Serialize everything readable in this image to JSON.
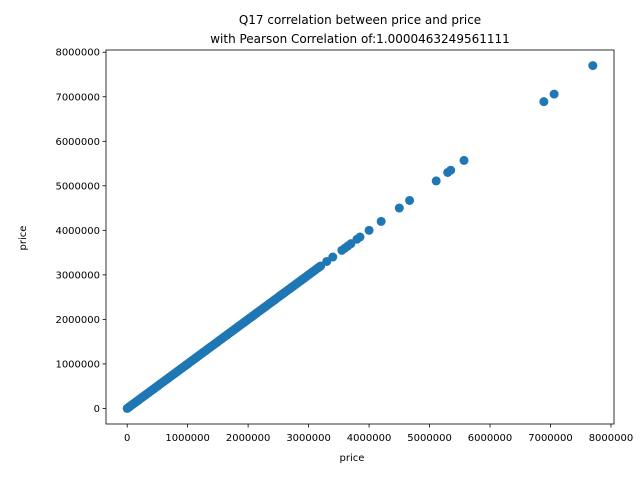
{
  "chart_data": {
    "type": "scatter",
    "title_line1": "Q17 correlation between price and price",
    "title_line2": "with Pearson Correlation of:1.0000463249561111",
    "xlabel": "price",
    "ylabel": "price",
    "xlim": [
      -350000,
      8050000
    ],
    "ylim": [
      -350000,
      8050000
    ],
    "xticks": [
      0,
      1000000,
      2000000,
      3000000,
      4000000,
      5000000,
      6000000,
      7000000,
      8000000
    ],
    "yticks": [
      0,
      1000000,
      2000000,
      3000000,
      4000000,
      5000000,
      6000000,
      7000000,
      8000000
    ],
    "xtick_labels": [
      "0",
      "1000000",
      "2000000",
      "3000000",
      "4000000",
      "5000000",
      "6000000",
      "7000000",
      "8000000"
    ],
    "ytick_labels": [
      "0",
      "1000000",
      "2000000",
      "3000000",
      "4000000",
      "5000000",
      "6000000",
      "7000000",
      "8000000"
    ],
    "grid": false,
    "marker_color": "#1f77b4",
    "dense_range": [
      0,
      3200000
    ],
    "points": [
      [
        3300000,
        3300000
      ],
      [
        3400000,
        3400000
      ],
      [
        3550000,
        3550000
      ],
      [
        3600000,
        3600000
      ],
      [
        3650000,
        3650000
      ],
      [
        3700000,
        3700000
      ],
      [
        3800000,
        3800000
      ],
      [
        3850000,
        3850000
      ],
      [
        4000000,
        4000000
      ],
      [
        4200000,
        4200000
      ],
      [
        4500000,
        4500000
      ],
      [
        4670000,
        4670000
      ],
      [
        5110000,
        5110000
      ],
      [
        5300000,
        5300000
      ],
      [
        5350000,
        5350000
      ],
      [
        5570000,
        5570000
      ],
      [
        6890000,
        6890000
      ],
      [
        7060000,
        7060000
      ],
      [
        7700000,
        7700000
      ]
    ]
  }
}
